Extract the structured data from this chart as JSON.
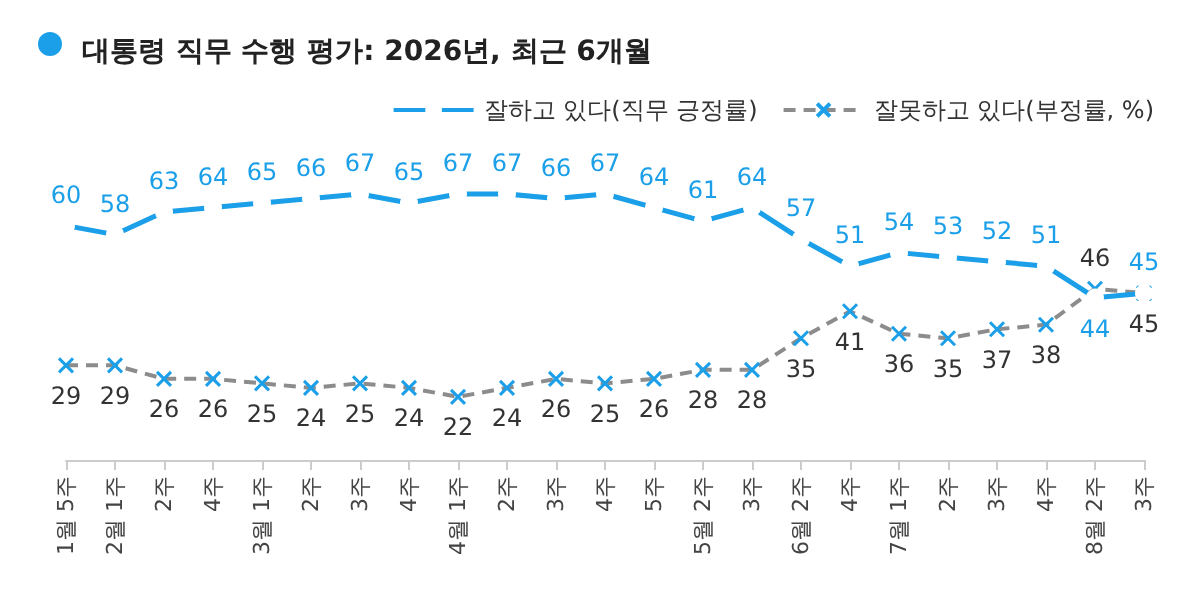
{
  "chart_data": {
    "type": "line",
    "title": "대통령 직무 수행 평가: 2026년, 최근 6개월",
    "categories": [
      "1월 5주",
      "2월 1주",
      "2주",
      "4주",
      "3월 1주",
      "2주",
      "3주",
      "4주",
      "4월 1주",
      "2주",
      "3주",
      "4주",
      "5주",
      "5월 2주",
      "3주",
      "6월 2주",
      "4주",
      "7월 1주",
      "2주",
      "3주",
      "4주",
      "8월 2주",
      "3주"
    ],
    "series": [
      {
        "name": "잘하고 있다(직무 긍정률)",
        "color": "#1a9fe8",
        "marker": "circle",
        "line_style": "solid",
        "values": [
          60,
          58,
          63,
          64,
          65,
          66,
          67,
          65,
          67,
          67,
          66,
          67,
          64,
          61,
          64,
          57,
          51,
          54,
          53,
          52,
          51,
          44,
          45
        ]
      },
      {
        "name": "잘못하고 있다(부정률, %)",
        "color": "#8c8c8c",
        "marker": "cross",
        "line_style": "dashed",
        "values": [
          29,
          29,
          26,
          26,
          25,
          24,
          25,
          24,
          22,
          24,
          26,
          25,
          26,
          28,
          28,
          35,
          41,
          36,
          35,
          37,
          38,
          46,
          45
        ]
      }
    ],
    "data_labels": true,
    "legend": "top right",
    "grid": false
  }
}
